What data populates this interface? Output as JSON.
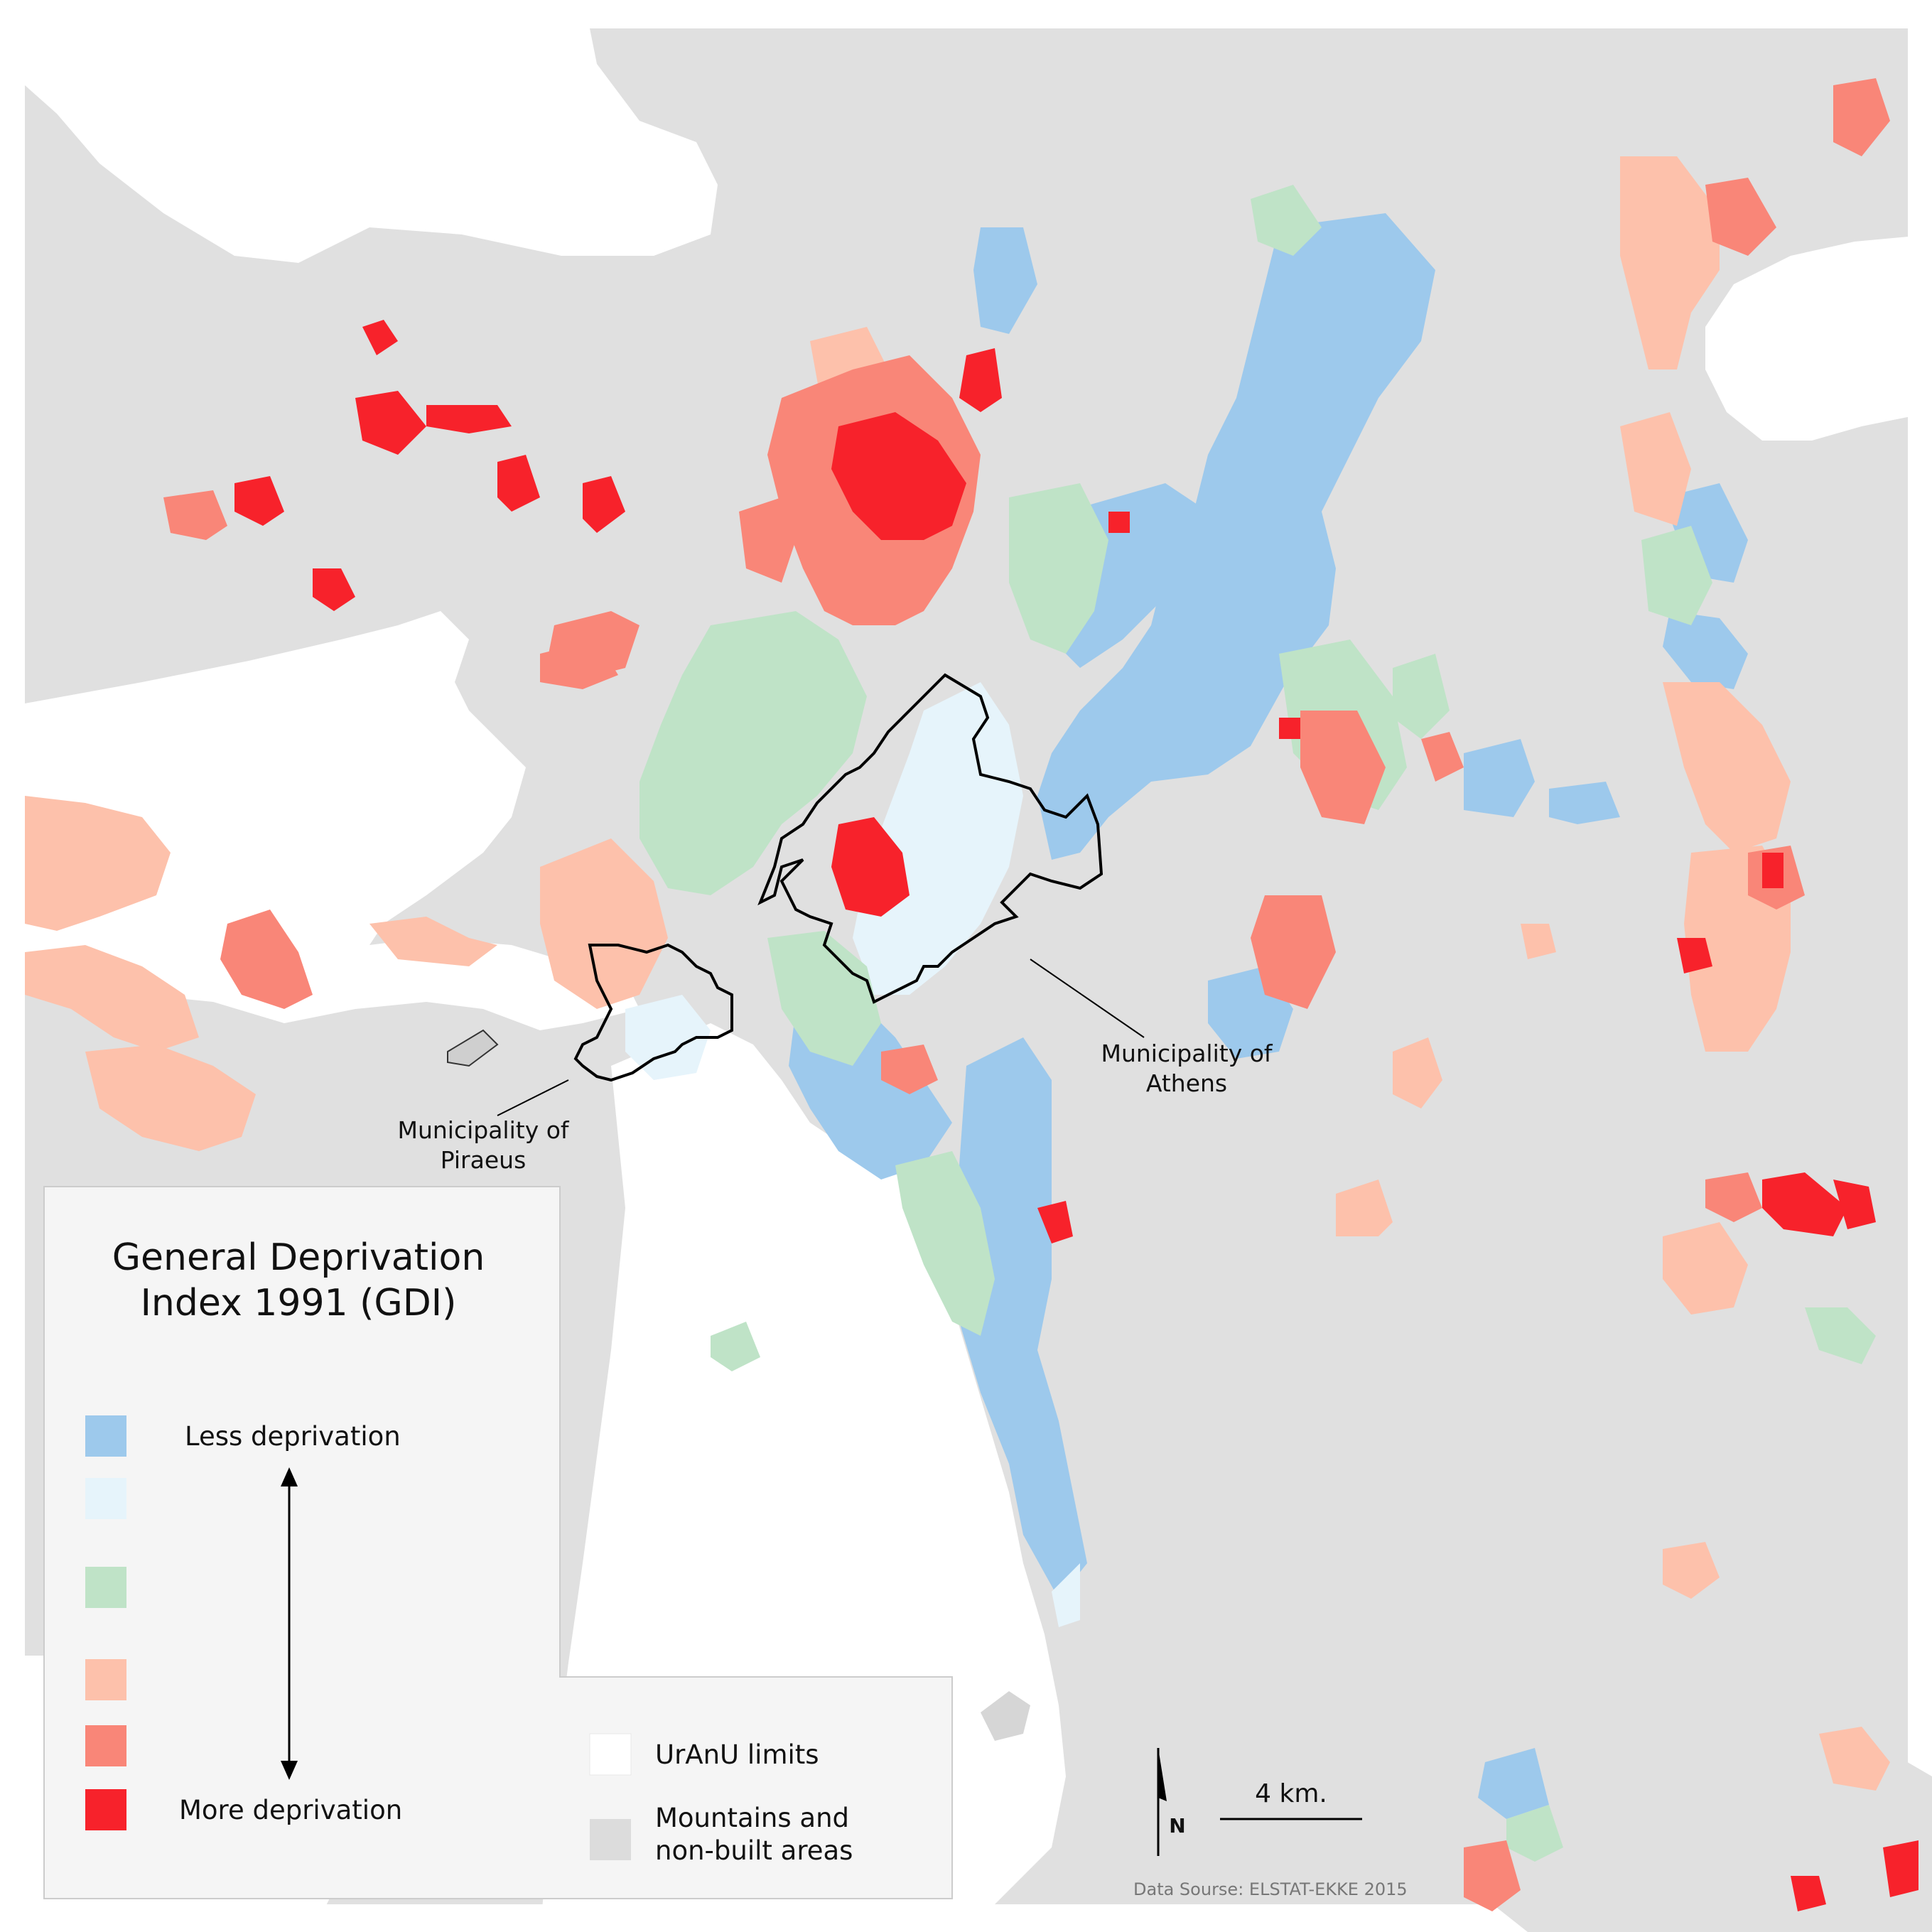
{
  "legend": {
    "title_line1": "General Deprivation",
    "title_line2": "Index 1991 (GDI)",
    "less_label": "Less deprivation",
    "more_label": "More deprivation",
    "classes": [
      {
        "color": "#9dc9ec"
      },
      {
        "color": "#e6f4fb"
      },
      {
        "color": "#bfe3c7"
      },
      {
        "color": "#fdc1ab"
      },
      {
        "color": "#f98678"
      },
      {
        "color": "#f7222b"
      }
    ],
    "uranu_label": "UrAnU limits",
    "mountains_label_line1": "Mountains and",
    "mountains_label_line2": "non-built areas",
    "mountains_color": "#dcdcdc"
  },
  "annotations": {
    "athens_line1": "Municipality of",
    "athens_line2": "Athens",
    "piraeus_line1": "Municipality of",
    "piraeus_line2": "Piraeus"
  },
  "scale_bar": {
    "label": "4 km."
  },
  "north_arrow": {
    "label": "N"
  },
  "source": "Data Sourse: ELSTAT-EKKE 2015",
  "colors": {
    "land": "#e0e0e0",
    "sea": "#ffffff",
    "less": "#9dc9ec",
    "very_light": "#e6f4fb",
    "middle": "#bfe3c7",
    "moderate": "#fdc1ab",
    "high": "#f98678",
    "most": "#f7222b"
  }
}
